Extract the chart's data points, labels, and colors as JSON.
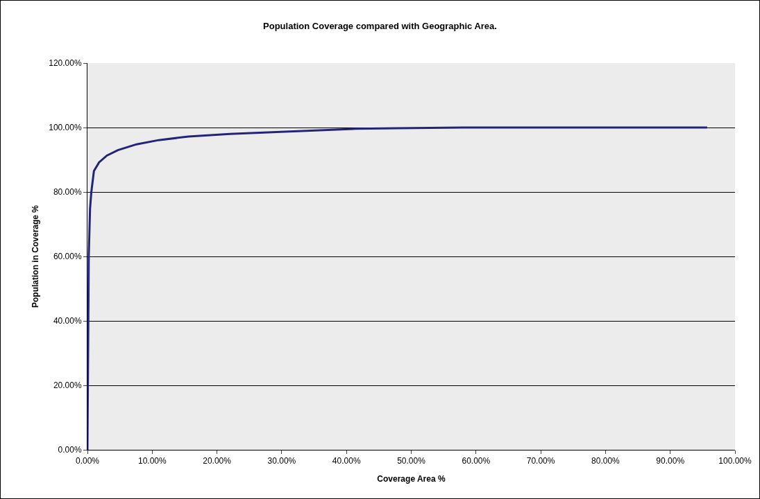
{
  "chart_data": {
    "type": "line",
    "title": "Population Coverage compared with Geographic Area.",
    "xlabel": "Coverage Area %",
    "ylabel": "Population in Coverage %",
    "x": [
      0,
      0.1,
      0.2,
      0.4,
      0.6,
      1.0,
      1.8,
      3.0,
      4.7,
      7.6,
      11,
      15.6,
      22,
      30.5,
      41.5,
      47.9,
      58,
      95.7
    ],
    "series": [
      {
        "color": "#23237a",
        "values": [
          0,
          30,
          60,
          74.8,
          80,
          86.5,
          89.2,
          91.3,
          93,
          94.8,
          96.1,
          97.2,
          98,
          98.7,
          99.6,
          99.8,
          100,
          100
        ]
      }
    ],
    "xlim": [
      0,
      100
    ],
    "ylim": [
      0,
      120
    ],
    "xticks": [
      {
        "value": 0,
        "label": "0.00%"
      },
      {
        "value": 10,
        "label": "10.00%"
      },
      {
        "value": 20,
        "label": "20.00%"
      },
      {
        "value": 30,
        "label": "30.00%"
      },
      {
        "value": 40,
        "label": "40.00%"
      },
      {
        "value": 50,
        "label": "50.00%"
      },
      {
        "value": 60,
        "label": "60.00%"
      },
      {
        "value": 70,
        "label": "70.00%"
      },
      {
        "value": 80,
        "label": "80.00%"
      },
      {
        "value": 90,
        "label": "90.00%"
      },
      {
        "value": 100,
        "label": "100.00%"
      }
    ],
    "yticks": [
      {
        "value": 0,
        "label": "0.00%"
      },
      {
        "value": 20,
        "label": "20.00%"
      },
      {
        "value": 40,
        "label": "40.00%"
      },
      {
        "value": 60,
        "label": "60.00%"
      },
      {
        "value": 80,
        "label": "80.00%"
      },
      {
        "value": 100,
        "label": "100.00%"
      },
      {
        "value": 120,
        "label": "120.00%"
      }
    ],
    "grid": "y",
    "marker": "none",
    "line_style": "solid"
  }
}
